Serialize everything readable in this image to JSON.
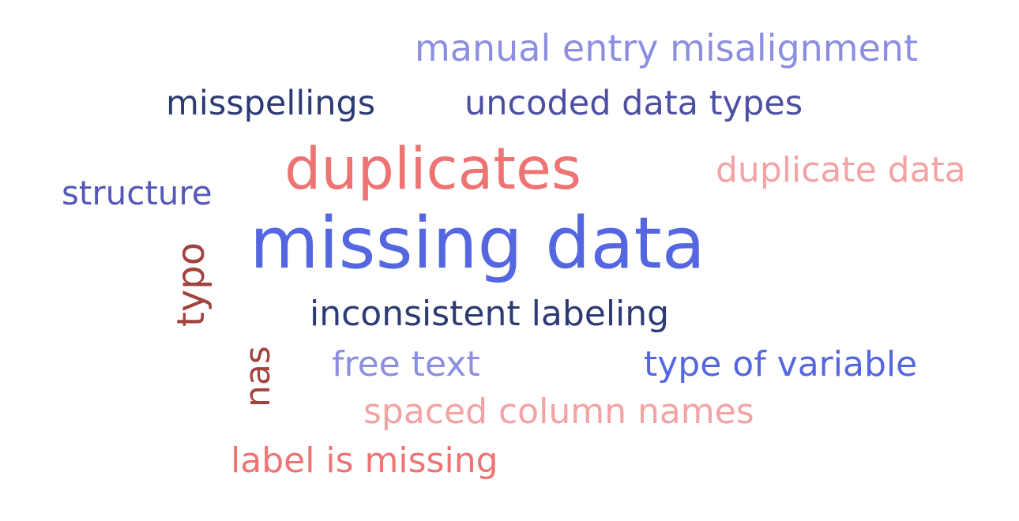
{
  "word_cloud": {
    "words": [
      {
        "id": "manual",
        "text": "manual entry misalignment",
        "color": "#8C8FE0"
      },
      {
        "id": "missp",
        "text": "misspellings",
        "color": "#2E3A73"
      },
      {
        "id": "uncoded",
        "text": "uncoded data types",
        "color": "#4D4FA2"
      },
      {
        "id": "dups",
        "text": "duplicates",
        "color": "#EE7474"
      },
      {
        "id": "dupdata",
        "text": "duplicate data",
        "color": "#F3A3A3"
      },
      {
        "id": "structure",
        "text": "structure",
        "color": "#5558B8"
      },
      {
        "id": "missing",
        "text": "missing data",
        "color": "#5567E0"
      },
      {
        "id": "typo",
        "text": "typo",
        "color": "#A2433E"
      },
      {
        "id": "incons",
        "text": "inconsistent labeling",
        "color": "#2E3A73"
      },
      {
        "id": "nas",
        "text": "nas",
        "color": "#A2433E"
      },
      {
        "id": "free",
        "text": "free text",
        "color": "#8C8FE0"
      },
      {
        "id": "typevar",
        "text": "type of variable",
        "color": "#5567E0"
      },
      {
        "id": "spaced",
        "text": "spaced column names",
        "color": "#F3A3A3"
      },
      {
        "id": "label",
        "text": "label is missing",
        "color": "#EE7474"
      }
    ]
  }
}
